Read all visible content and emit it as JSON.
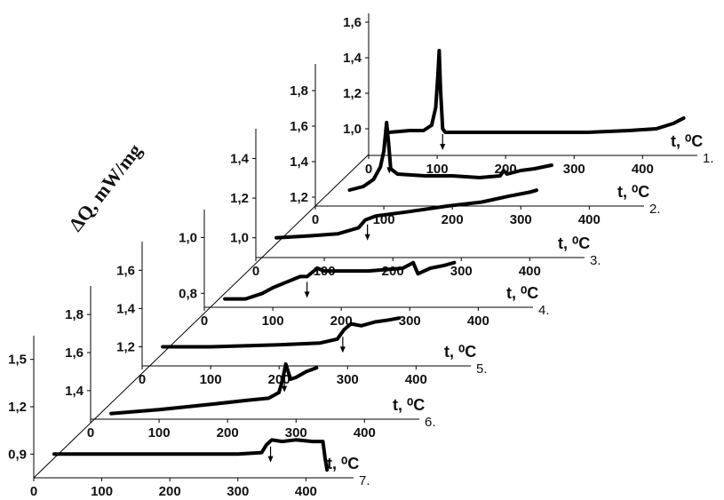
{
  "chart_data": {
    "type": "line",
    "title": "",
    "ylabel": "ΔQ, mW/mg",
    "xlabel": "t, ⁰C",
    "panels": [
      {
        "id": "1.",
        "yticks": [
          "1,0",
          "1,2",
          "1,4",
          "1,6"
        ],
        "xticks": [
          "0",
          "100",
          "200",
          "300",
          "400"
        ],
        "ylim": [
          0.85,
          1.65
        ],
        "xlim": [
          0,
          480
        ],
        "points": [
          [
            30,
            0.98
          ],
          [
            60,
            0.99
          ],
          [
            80,
            0.99
          ],
          [
            92,
            1.02
          ],
          [
            98,
            1.12
          ],
          [
            101,
            1.3
          ],
          [
            103,
            1.44
          ],
          [
            105,
            1.22
          ],
          [
            108,
            1.0
          ],
          [
            112,
            0.98
          ],
          [
            140,
            0.98
          ],
          [
            200,
            0.98
          ],
          [
            260,
            0.98
          ],
          [
            320,
            0.98
          ],
          [
            380,
            0.99
          ],
          [
            420,
            1.0
          ],
          [
            445,
            1.03
          ],
          [
            460,
            1.06
          ]
        ],
        "markers": [
          {
            "t": 108
          }
        ]
      },
      {
        "id": "2.",
        "yticks": [
          "1,2",
          "1,4",
          "1,6",
          "1,8"
        ],
        "xticks": [
          "0",
          "100",
          "200",
          "300",
          "400"
        ],
        "ylim": [
          1.15,
          1.95
        ],
        "xlim": [
          0,
          480
        ],
        "points": [
          [
            50,
            1.24
          ],
          [
            70,
            1.26
          ],
          [
            85,
            1.3
          ],
          [
            95,
            1.37
          ],
          [
            100,
            1.46
          ],
          [
            104,
            1.62
          ],
          [
            107,
            1.5
          ],
          [
            110,
            1.36
          ],
          [
            120,
            1.33
          ],
          [
            160,
            1.32
          ],
          [
            200,
            1.32
          ],
          [
            240,
            1.31
          ],
          [
            270,
            1.32
          ],
          [
            275,
            1.35
          ],
          [
            280,
            1.33
          ],
          [
            300,
            1.35
          ],
          [
            320,
            1.36
          ],
          [
            345,
            1.38
          ]
        ],
        "markers": [
          {
            "t": 108
          }
        ]
      },
      {
        "id": "3.",
        "yticks": [
          "1,0",
          "1,2",
          "1,4"
        ],
        "xticks": [
          "0",
          "100",
          "200",
          "300",
          "400"
        ],
        "ylim": [
          0.9,
          1.55
        ],
        "xlim": [
          0,
          480
        ],
        "points": [
          [
            30,
            1.0
          ],
          [
            80,
            1.01
          ],
          [
            120,
            1.02
          ],
          [
            150,
            1.05
          ],
          [
            160,
            1.09
          ],
          [
            175,
            1.11
          ],
          [
            220,
            1.13
          ],
          [
            280,
            1.16
          ],
          [
            330,
            1.18
          ],
          [
            370,
            1.21
          ],
          [
            400,
            1.23
          ],
          [
            410,
            1.24
          ]
        ],
        "markers": [
          {
            "t": 163
          }
        ]
      },
      {
        "id": "4.",
        "yticks": [
          "0,8",
          "1,0"
        ],
        "xticks": [
          "0",
          "100",
          "200",
          "300",
          "400"
        ],
        "ylim": [
          0.75,
          1.1
        ],
        "xlim": [
          0,
          480
        ],
        "points": [
          [
            30,
            0.78
          ],
          [
            60,
            0.78
          ],
          [
            85,
            0.8
          ],
          [
            100,
            0.82
          ],
          [
            120,
            0.84
          ],
          [
            140,
            0.86
          ],
          [
            150,
            0.86
          ],
          [
            165,
            0.89
          ],
          [
            175,
            0.88
          ],
          [
            190,
            0.88
          ],
          [
            240,
            0.88
          ],
          [
            290,
            0.89
          ],
          [
            305,
            0.91
          ],
          [
            312,
            0.87
          ],
          [
            330,
            0.89
          ],
          [
            350,
            0.9
          ],
          [
            365,
            0.91
          ]
        ],
        "markers": [
          {
            "t": 150
          }
        ]
      },
      {
        "id": "5.",
        "yticks": [
          "1,2",
          "1,4",
          "1,6"
        ],
        "xticks": [
          "0",
          "100",
          "200",
          "300",
          "400"
        ],
        "ylim": [
          1.1,
          1.75
        ],
        "xlim": [
          0,
          480
        ],
        "points": [
          [
            30,
            1.2
          ],
          [
            100,
            1.2
          ],
          [
            200,
            1.21
          ],
          [
            260,
            1.22
          ],
          [
            285,
            1.24
          ],
          [
            295,
            1.29
          ],
          [
            305,
            1.32
          ],
          [
            320,
            1.31
          ],
          [
            340,
            1.33
          ],
          [
            360,
            1.34
          ],
          [
            375,
            1.35
          ]
        ],
        "markers": [
          {
            "t": 293
          }
        ]
      },
      {
        "id": "6.",
        "yticks": [
          "1,4",
          "1,6",
          "1,8"
        ],
        "xticks": [
          "0",
          "100",
          "200",
          "300",
          "400"
        ],
        "ylim": [
          1.25,
          1.95
        ],
        "xlim": [
          0,
          480
        ],
        "points": [
          [
            30,
            1.28
          ],
          [
            100,
            1.3
          ],
          [
            180,
            1.33
          ],
          [
            230,
            1.35
          ],
          [
            260,
            1.36
          ],
          [
            275,
            1.39
          ],
          [
            280,
            1.45
          ],
          [
            285,
            1.54
          ],
          [
            292,
            1.46
          ],
          [
            300,
            1.47
          ],
          [
            315,
            1.5
          ],
          [
            330,
            1.52
          ]
        ],
        "markers": [
          {
            "t": 283
          }
        ]
      },
      {
        "id": "7.",
        "yticks": [
          "0,9",
          "1,2",
          "1,5"
        ],
        "xticks": [
          "0",
          "100",
          "200",
          "300",
          "400"
        ],
        "ylim": [
          0.75,
          1.65
        ],
        "xlim": [
          0,
          470
        ],
        "points": [
          [
            30,
            0.9
          ],
          [
            100,
            0.9
          ],
          [
            200,
            0.9
          ],
          [
            300,
            0.9
          ],
          [
            335,
            0.91
          ],
          [
            342,
            0.96
          ],
          [
            350,
            0.99
          ],
          [
            365,
            0.98
          ],
          [
            385,
            0.99
          ],
          [
            410,
            0.98
          ],
          [
            425,
            0.98
          ],
          [
            428,
            0.88
          ],
          [
            431,
            0.8
          ]
        ],
        "markers": [
          {
            "t": 348
          }
        ]
      }
    ]
  }
}
